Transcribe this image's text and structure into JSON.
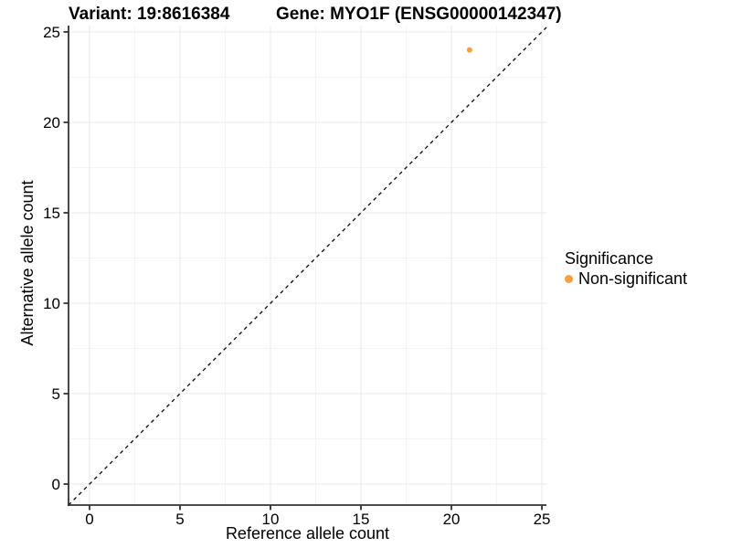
{
  "header": {
    "variant_title": "Variant: 19:8616384",
    "gene_title": "Gene: MYO1F (ENSG00000142347)"
  },
  "axes": {
    "x_label": "Reference allele count",
    "y_label": "Alternative allele count"
  },
  "legend": {
    "title": "Significance",
    "items": [
      {
        "label": "Non-significant",
        "color": "#F9A03C"
      }
    ]
  },
  "chart_data": {
    "type": "scatter",
    "title": "Variant: 19:8616384 / Gene: MYO1F (ENSG00000142347)",
    "xlabel": "Reference allele count",
    "ylabel": "Alternative allele count",
    "x_ticks": [
      0,
      5,
      10,
      15,
      20,
      25
    ],
    "y_ticks": [
      0,
      5,
      10,
      15,
      20,
      25
    ],
    "xlim": [
      -1.16,
      25.25
    ],
    "ylim": [
      -1.16,
      25.35
    ],
    "grid": true,
    "legend_position": "right",
    "series": [
      {
        "name": "Non-significant",
        "color": "#F9A03C",
        "point_radius": 3,
        "points": [
          {
            "x": 21,
            "y": 24
          }
        ]
      }
    ],
    "reference_line": {
      "type": "identity",
      "equation": "y = x",
      "style": "dashed",
      "color": "#000000"
    }
  },
  "colors": {
    "background": "#FFFFFF",
    "grid_major": "#E9E9E9",
    "grid_minor": "#F4F4F4",
    "axis_line": "#333333",
    "tick_text": "#000000",
    "point": "#F9A03C"
  }
}
